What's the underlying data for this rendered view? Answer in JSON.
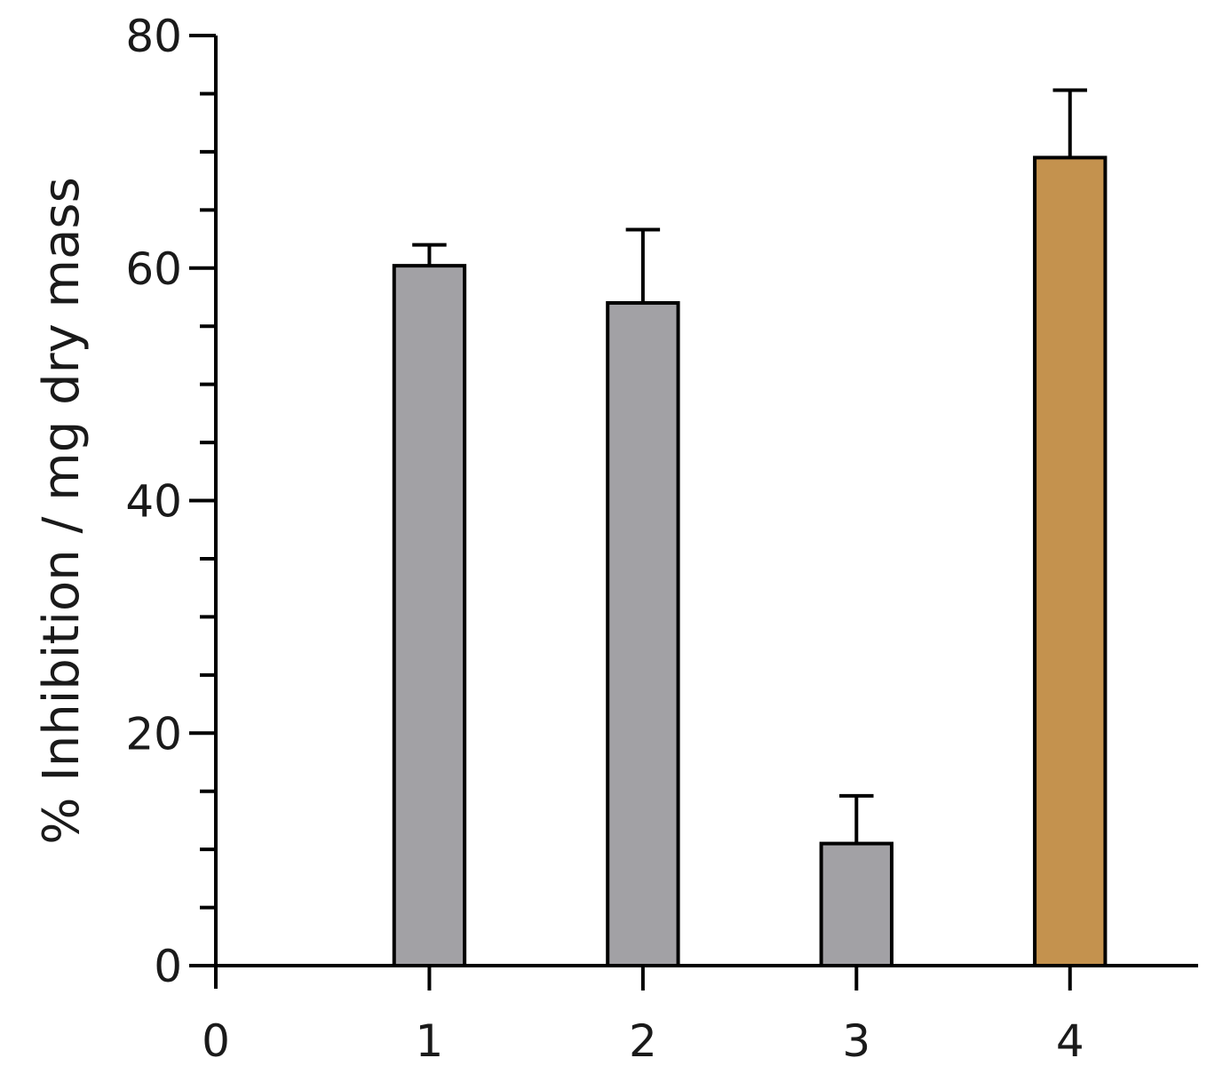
{
  "chart_data": {
    "type": "bar",
    "title": "",
    "xlabel": "",
    "ylabel": "% Inhibition / mg dry mass",
    "x_ticks": [
      "0",
      "1",
      "2",
      "3",
      "4"
    ],
    "xlim": [
      0,
      4.6
    ],
    "ylim": [
      0,
      80
    ],
    "y_major_ticks": [
      0,
      20,
      40,
      60,
      80
    ],
    "y_minor_step": 5,
    "grid": false,
    "bars": [
      {
        "x": 1,
        "value": 60.2,
        "error": 1.8,
        "color": "#a2a1a5"
      },
      {
        "x": 2,
        "value": 57.0,
        "error": 6.3,
        "color": "#a2a1a5"
      },
      {
        "x": 3,
        "value": 10.5,
        "error": 4.1,
        "color": "#a2a1a5"
      },
      {
        "x": 4,
        "value": 69.5,
        "error": 5.8,
        "color": "#c4924e"
      }
    ]
  }
}
